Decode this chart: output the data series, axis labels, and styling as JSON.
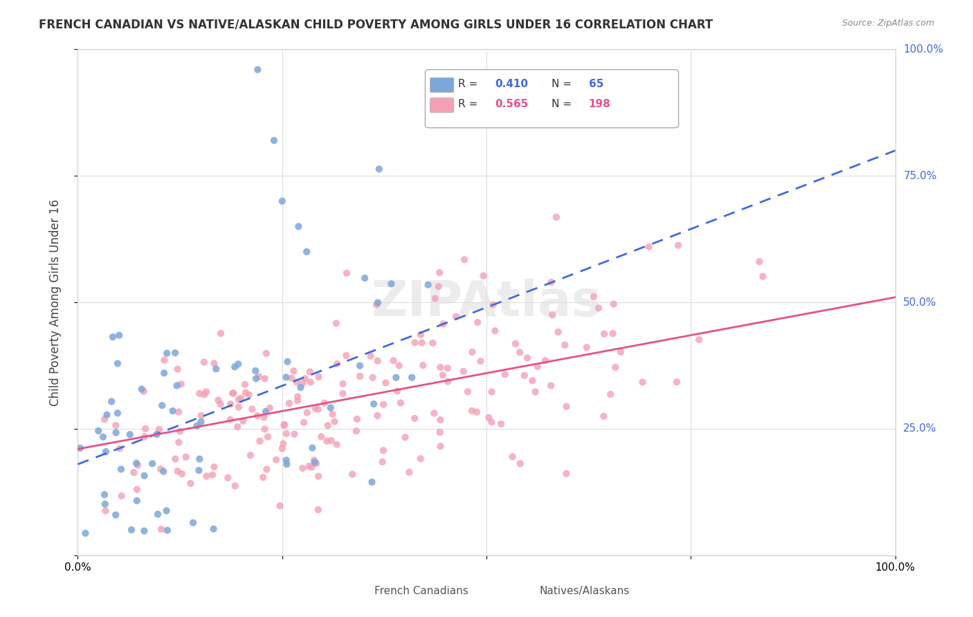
{
  "title": "FRENCH CANADIAN VS NATIVE/ALASKAN CHILD POVERTY AMONG GIRLS UNDER 16 CORRELATION CHART",
  "source": "Source: ZipAtlas.com",
  "ylabel": "Child Poverty Among Girls Under 16",
  "xlim": [
    0.0,
    1.0
  ],
  "ylim": [
    0.0,
    1.0
  ],
  "blue_color": "#7da7d9",
  "pink_color": "#f4a0b5",
  "blue_line_color": "#4169e1",
  "pink_line_color": "#e8508a",
  "blue_R": 0.41,
  "blue_N": 65,
  "pink_R": 0.565,
  "pink_N": 198,
  "legend_label_blue": "French Canadians",
  "legend_label_pink": "Natives/Alaskans",
  "watermark": "ZIPAtlas",
  "blue_intercept": 0.18,
  "blue_slope": 0.62,
  "pink_intercept": 0.21,
  "pink_slope": 0.3,
  "ytick_vals": [
    0.25,
    0.5,
    0.75,
    1.0
  ],
  "ytick_labels": [
    "25.0%",
    "50.0%",
    "75.0%",
    "100.0%"
  ]
}
